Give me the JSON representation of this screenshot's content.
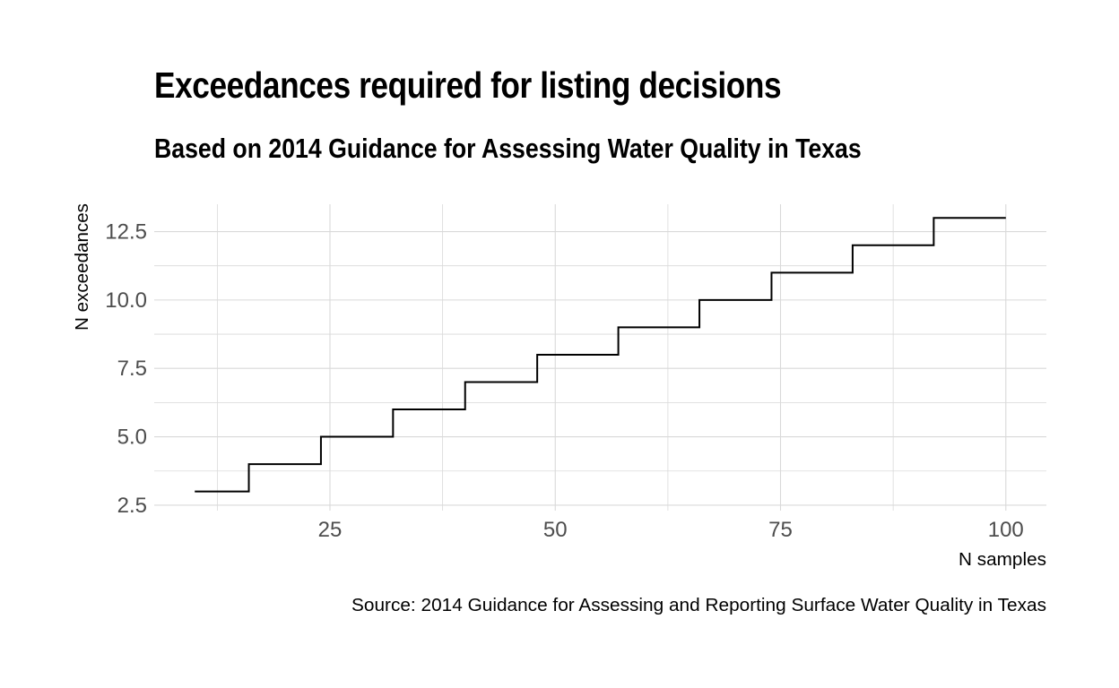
{
  "chart_data": {
    "type": "line",
    "style": "step",
    "title": "Exceedances required for listing decisions",
    "subtitle": "Based on 2014 Guidance for Assessing Water Quality in Texas",
    "xlabel": "N samples",
    "ylabel": "N exceedances",
    "caption": "Source: 2014 Guidance for Assessing and Reporting Surface Water Quality in Texas",
    "xlim": [
      5.5,
      104.5
    ],
    "ylim": [
      2.3,
      13.5
    ],
    "x_ticks": [
      25,
      50,
      75,
      100
    ],
    "x_tick_labels": [
      "25",
      "50",
      "75",
      "100"
    ],
    "y_ticks": [
      2.5,
      5,
      7.5,
      10,
      12.5
    ],
    "y_tick_labels": [
      "2.5",
      "5.0",
      "7.5",
      "10.0",
      "12.5"
    ],
    "grid": true,
    "line_color": "#000000",
    "grid_color": "#d9d9d9",
    "steps": [
      {
        "x_start": 10,
        "x_end": 16,
        "y": 3
      },
      {
        "x_start": 16,
        "x_end": 24,
        "y": 4
      },
      {
        "x_start": 24,
        "x_end": 32,
        "y": 5
      },
      {
        "x_start": 32,
        "x_end": 40,
        "y": 6
      },
      {
        "x_start": 40,
        "x_end": 48,
        "y": 7
      },
      {
        "x_start": 48,
        "x_end": 57,
        "y": 8
      },
      {
        "x_start": 57,
        "x_end": 66,
        "y": 9
      },
      {
        "x_start": 66,
        "x_end": 74,
        "y": 10
      },
      {
        "x_start": 74,
        "x_end": 83,
        "y": 11
      },
      {
        "x_start": 83,
        "x_end": 92,
        "y": 12
      },
      {
        "x_start": 92,
        "x_end": 100,
        "y": 13
      }
    ]
  }
}
